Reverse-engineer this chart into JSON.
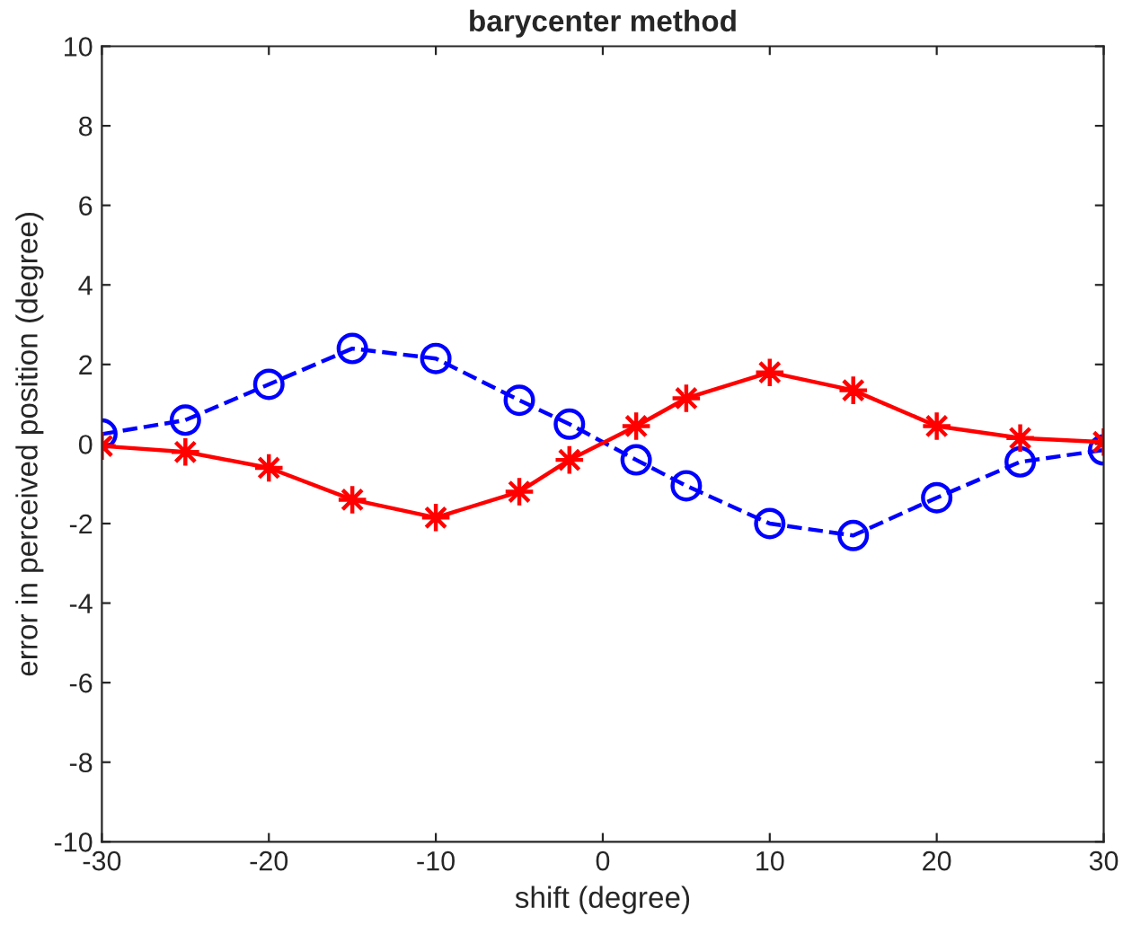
{
  "chart_data": {
    "type": "line",
    "title": "barycenter method",
    "xlabel": "shift (degree)",
    "ylabel": "error in perceived position (degree)",
    "x": [
      -30,
      -25,
      -20,
      -15,
      -10,
      -5,
      -2,
      2,
      5,
      10,
      15,
      20,
      25,
      30
    ],
    "xlim": [
      -30,
      30
    ],
    "xticks": [
      -30,
      -20,
      -10,
      0,
      10,
      20,
      30
    ],
    "ylim": [
      -10,
      10
    ],
    "yticks": [
      -10,
      -8,
      -6,
      -4,
      -2,
      0,
      2,
      4,
      6,
      8,
      10
    ],
    "grid": false,
    "series": [
      {
        "color": "#0000ff",
        "marker": "circle",
        "line_style": "dashed",
        "values": [
          0.25,
          0.6,
          1.5,
          2.4,
          2.15,
          1.1,
          0.5,
          -0.4,
          -1.05,
          -2.0,
          -2.3,
          -1.35,
          -0.45,
          -0.15
        ]
      },
      {
        "color": "#ff0000",
        "marker": "star",
        "line_style": "solid",
        "values": [
          -0.05,
          -0.2,
          -0.6,
          -1.4,
          -1.85,
          -1.2,
          -0.4,
          0.45,
          1.15,
          1.8,
          1.35,
          0.45,
          0.15,
          0.05
        ]
      }
    ]
  }
}
